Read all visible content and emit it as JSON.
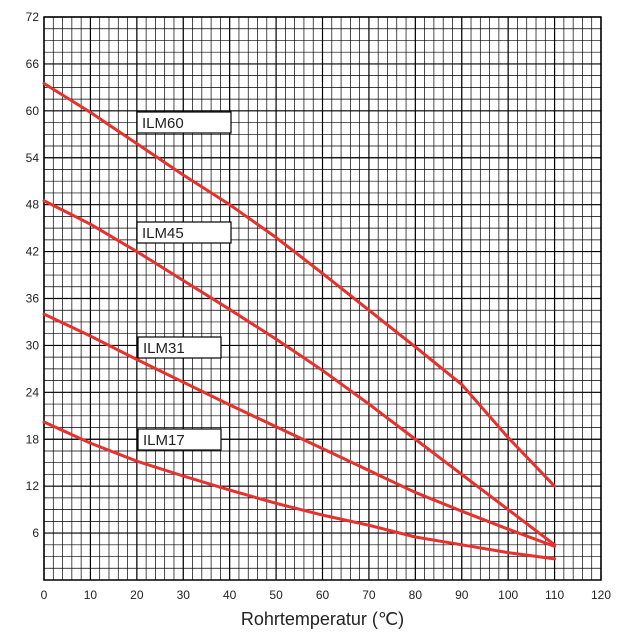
{
  "chart_data": {
    "type": "line",
    "title": "",
    "xlabel": "Rohrtemperatur (℃)",
    "ylabel": "",
    "xlim": [
      0,
      120
    ],
    "ylim": [
      0,
      72
    ],
    "x_ticks": [
      0,
      10,
      20,
      30,
      40,
      50,
      60,
      70,
      80,
      90,
      100,
      110,
      120
    ],
    "y_ticks": [
      6,
      12,
      18,
      24,
      30,
      36,
      42,
      48,
      54,
      60,
      66,
      72
    ],
    "grid": true,
    "line_color": "#e8302c",
    "series": [
      {
        "name": "ILM60",
        "x": [
          0,
          10,
          20,
          30,
          40,
          50,
          60,
          70,
          80,
          90,
          100,
          110
        ],
        "y": [
          63.5,
          59.8,
          55.8,
          51.8,
          48.0,
          43.8,
          39.2,
          34.5,
          29.8,
          25.0,
          18.2,
          12.0
        ]
      },
      {
        "name": "ILM45",
        "x": [
          0,
          10,
          20,
          30,
          40,
          50,
          60,
          70,
          80,
          90,
          100,
          110
        ],
        "y": [
          48.5,
          45.5,
          42.0,
          38.3,
          34.6,
          30.8,
          26.8,
          22.5,
          18.0,
          13.5,
          9.0,
          4.5
        ]
      },
      {
        "name": "ILM31",
        "x": [
          0,
          10,
          20,
          30,
          40,
          50,
          60,
          70,
          80,
          90,
          100,
          110
        ],
        "y": [
          34.0,
          31.2,
          28.2,
          25.3,
          22.4,
          19.6,
          16.8,
          14.0,
          11.2,
          8.8,
          6.5,
          4.3
        ]
      },
      {
        "name": "ILM17",
        "x": [
          0,
          10,
          20,
          30,
          40,
          50,
          60,
          70,
          80,
          90,
          100,
          110
        ],
        "y": [
          20.2,
          17.5,
          15.2,
          13.3,
          11.5,
          9.8,
          8.3,
          7.0,
          5.5,
          4.5,
          3.5,
          2.7
        ]
      }
    ]
  }
}
